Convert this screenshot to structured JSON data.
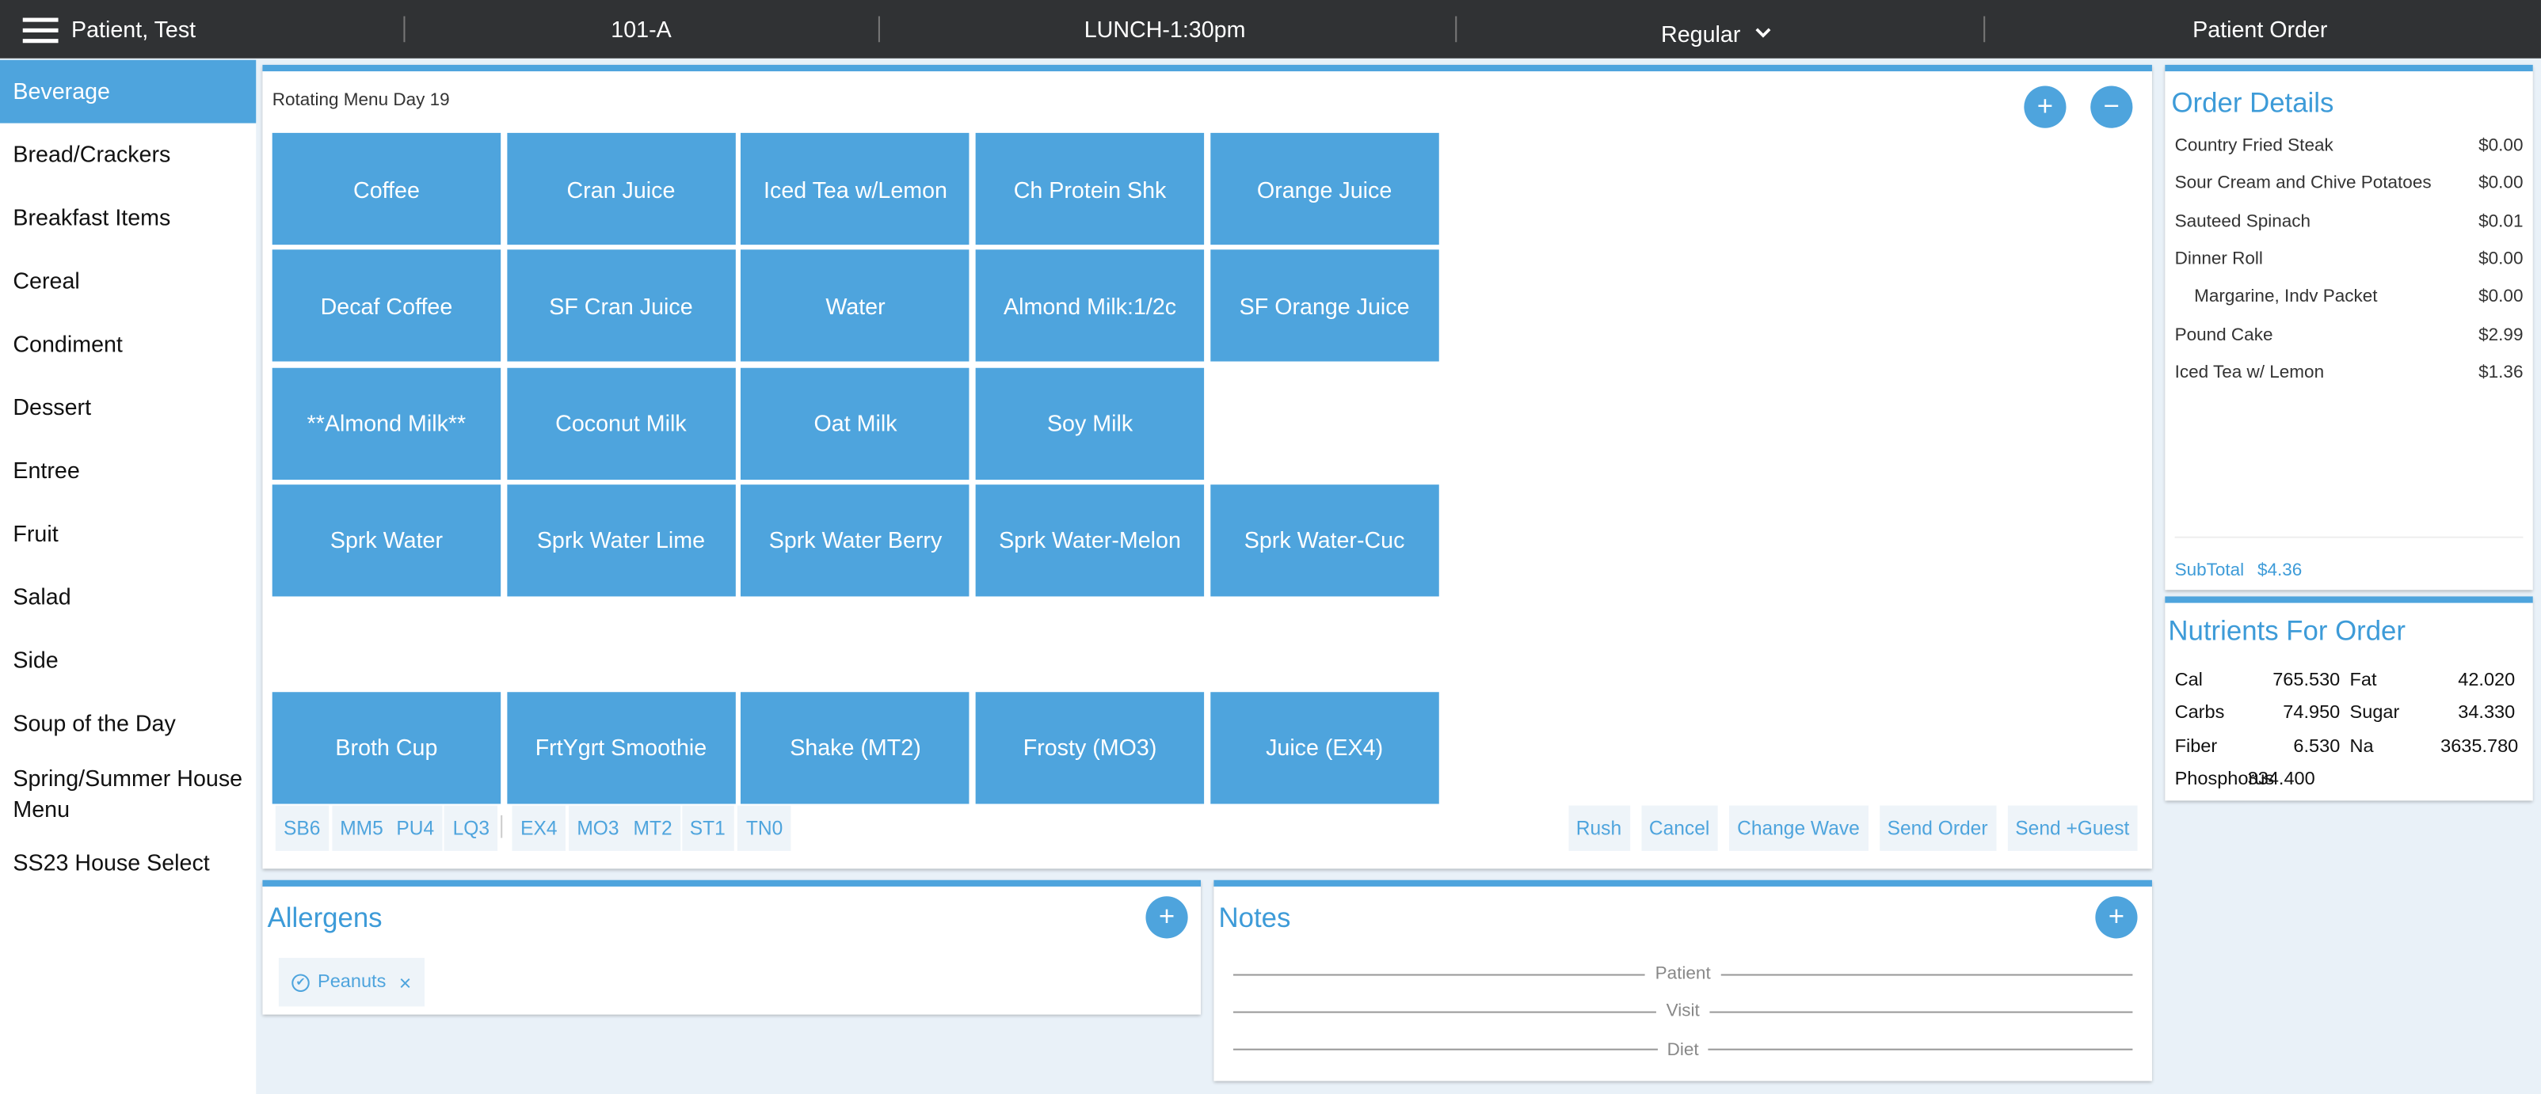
{
  "header": {
    "patient": "Patient, Test",
    "room": "101-A",
    "meal": "LUNCH-1:30pm",
    "diet": "Regular",
    "page": "Patient Order"
  },
  "sidebar": {
    "categories": [
      "Beverage",
      "Bread/Crackers",
      "Breakfast Items",
      "Cereal",
      "Condiment",
      "Dessert",
      "Entree",
      "Fruit",
      "Salad",
      "Side",
      "Soup of the Day",
      "Spring/Summer House Menu",
      "SS23 House Select"
    ],
    "active": 0
  },
  "menu": {
    "title": "Rotating Menu Day 19",
    "rows": [
      [
        "Coffee",
        "Cran Juice",
        "Iced Tea w/Lemon",
        "Ch Protein Shk",
        "Orange Juice"
      ],
      [
        "Decaf Coffee",
        "SF Cran Juice",
        "Water",
        "Almond Milk:1/2c",
        "SF Orange Juice"
      ],
      [
        "**Almond Milk**",
        "Coconut Milk",
        "Oat Milk",
        "Soy Milk"
      ],
      [
        "Sprk Water",
        "Sprk Water Lime",
        "Sprk Water Berry",
        "Sprk Water-Melon",
        "Sprk Water-Cuc"
      ],
      [],
      [
        "Broth Cup",
        "FrtYgrt Smoothie",
        "Shake (MT2)",
        "Frosty (MO3)",
        "Juice (EX4)"
      ]
    ],
    "code_groups": [
      [
        "SB6",
        "MM5",
        "PU4",
        "LQ3"
      ],
      [
        "EX4",
        "MO3",
        "MT2",
        "ST1",
        "TN0"
      ]
    ],
    "actions": [
      "Rush",
      "Cancel",
      "Change Wave",
      "Send Order",
      "Send +Guest"
    ]
  },
  "order": {
    "title": "Order Details",
    "items": [
      {
        "name": "Country Fried Steak",
        "price": "$0.00"
      },
      {
        "name": "Sour Cream and Chive Potatoes",
        "price": "$0.00"
      },
      {
        "name": "Sauteed Spinach",
        "price": "$0.01"
      },
      {
        "name": "Dinner Roll",
        "price": "$0.00"
      },
      {
        "name": "Margarine, Indv Packet",
        "price": "$0.00",
        "indent": true
      },
      {
        "name": "Pound Cake",
        "price": "$2.99"
      },
      {
        "name": "Iced Tea w/ Lemon",
        "price": "$1.36"
      }
    ],
    "subtotal_label": "SubTotal",
    "subtotal": "$4.36"
  },
  "nutrients": {
    "title": "Nutrients For Order",
    "rows": [
      [
        "Cal",
        "765.530",
        "Fat",
        "42.020"
      ],
      [
        "Carbs",
        "74.950",
        "Sugar",
        "34.330"
      ],
      [
        "Fiber",
        "6.530",
        "Na",
        "3635.780"
      ],
      [
        "Phosphorus",
        "334.400"
      ]
    ]
  },
  "allergens": {
    "title": "Allergens",
    "tags": [
      "Peanuts"
    ]
  },
  "notes": {
    "title": "Notes",
    "sections": [
      "Patient",
      "Visit",
      "Diet"
    ]
  }
}
